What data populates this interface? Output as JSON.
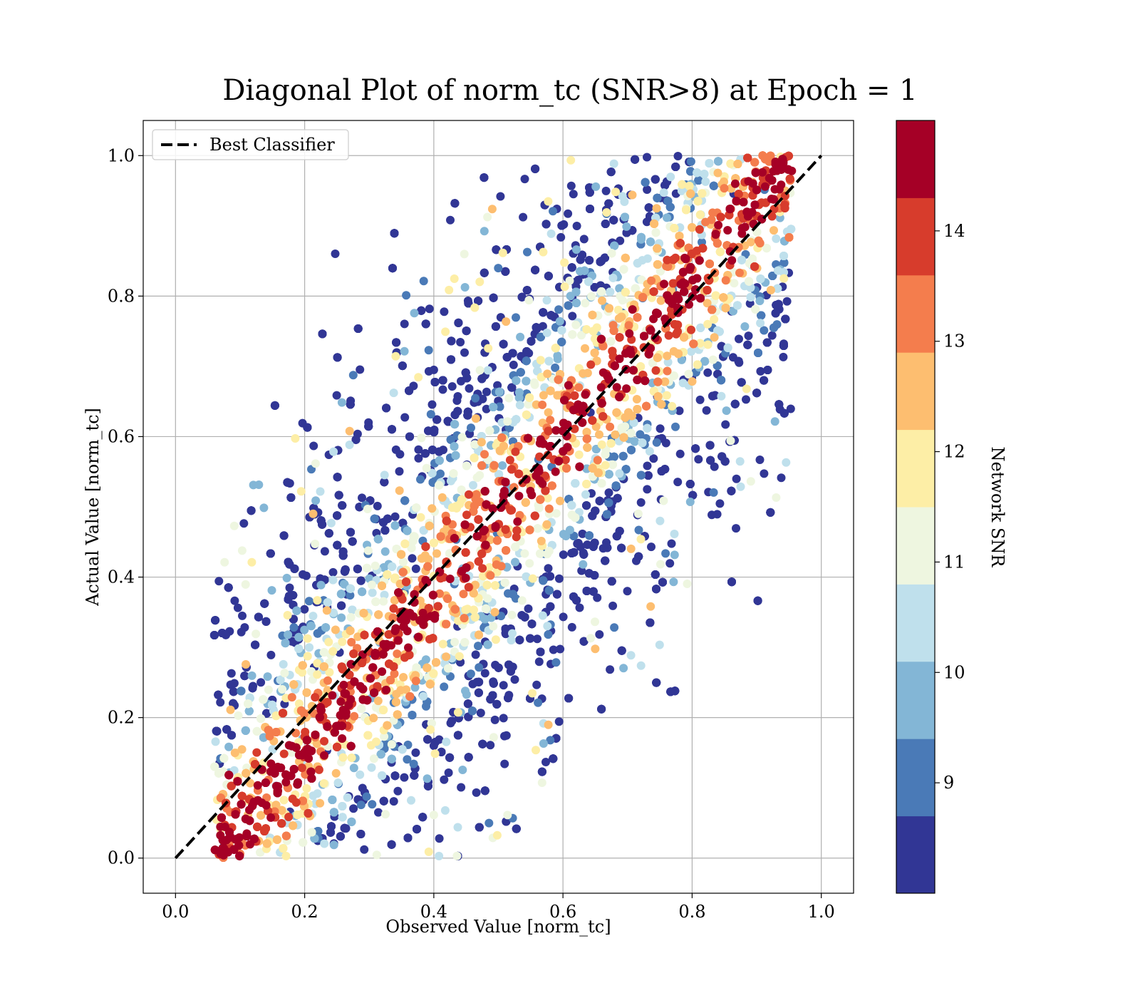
{
  "chart_data": {
    "type": "scatter",
    "title": "Diagonal Plot of norm_tc (SNR>8) at Epoch = 1",
    "xlabel": "Observed Value [norm_tc]",
    "ylabel": "Actual Value [norm_tc]",
    "xlim": [
      -0.05,
      1.05
    ],
    "ylim": [
      -0.05,
      1.05
    ],
    "xticks": [
      "0.0",
      "0.2",
      "0.4",
      "0.6",
      "0.8",
      "1.0"
    ],
    "yticks": [
      "0.0",
      "0.2",
      "0.4",
      "0.6",
      "0.8",
      "1.0"
    ],
    "grid": true,
    "legend": {
      "placement": "top-left",
      "entries": [
        {
          "label": "Best Classifier",
          "style": "dashed",
          "color": "#000000"
        }
      ]
    },
    "reference_line": {
      "name": "Best Classifier",
      "x": [
        0.0,
        1.0
      ],
      "y": [
        0.0,
        1.0
      ]
    },
    "colorbar": {
      "label": "Network SNR",
      "range": [
        8,
        15
      ],
      "ticks": [
        "9",
        "10",
        "11",
        "12",
        "13",
        "14"
      ],
      "tick_values": [
        9,
        10,
        11,
        12,
        13,
        14
      ],
      "levels": [
        "#313695",
        "#4575b4",
        "#74add1",
        "#abd9e9",
        "#e0f3f8",
        "#ffffbf",
        "#fee090",
        "#fdae61",
        "#f46d43",
        "#d73027",
        "#a50026"
      ],
      "level_colors": [
        "#313695",
        "#4a7ab7",
        "#83b6d6",
        "#bfe0ec",
        "#eef6e0",
        "#fdeea6",
        "#fdbe70",
        "#f47d4d",
        "#d73c2c",
        "#a50026"
      ]
    },
    "scatter_summary": {
      "points_approx": 20000,
      "band": "points spread around y = x in a band of roughly ±0.3; high-SNR (dark red) points concentrate near the diagonal, low-SNR (blue) points lie further away",
      "clusters": [
        {
          "x_center": 0.15,
          "y_center": 0.12,
          "snr": "high"
        },
        {
          "x_center": 0.5,
          "y_center": 0.1,
          "snr": "low"
        },
        {
          "x_center": 0.5,
          "y_center": 0.85,
          "snr": "low"
        },
        {
          "x_center": 0.88,
          "y_center": 0.88,
          "snr": "high"
        }
      ]
    }
  }
}
